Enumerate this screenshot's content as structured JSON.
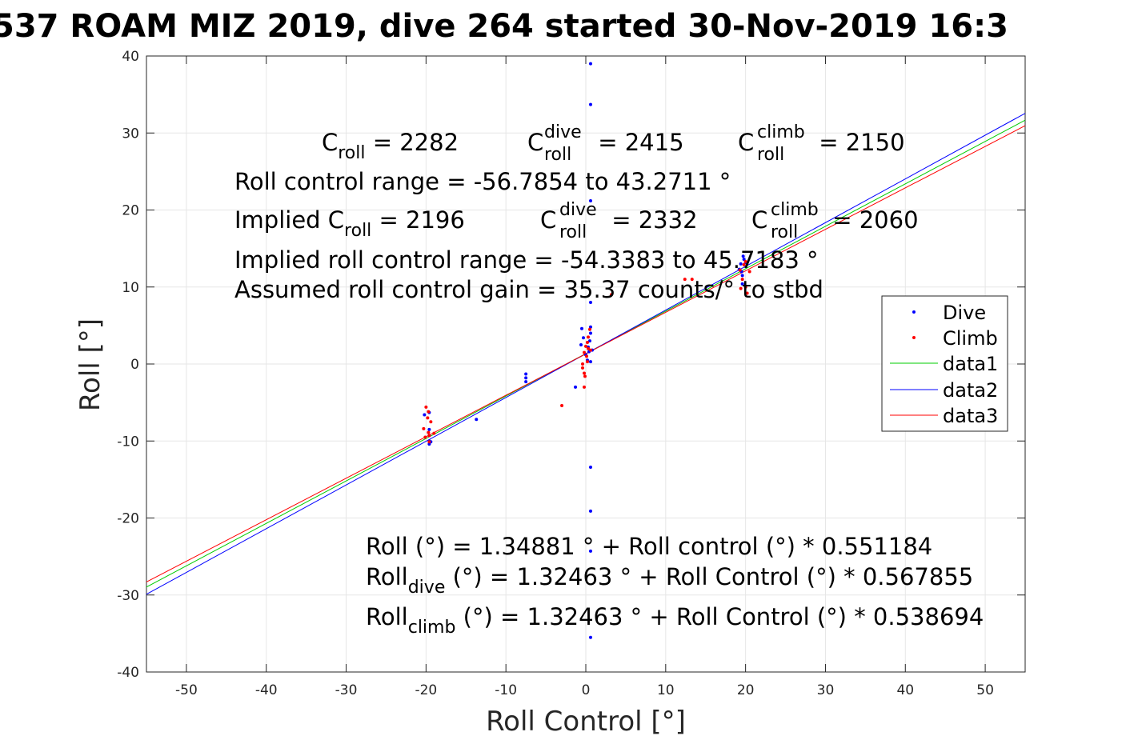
{
  "chart_data": {
    "type": "scatter",
    "title": "537 ROAM MIZ 2019, dive 264 started 30-Nov-2019 16:3",
    "xlabel": "Roll Control [°]",
    "ylabel": "Roll [°]",
    "xlim": [
      -55,
      55
    ],
    "ylim": [
      -40,
      40
    ],
    "xticks": [
      -50,
      -40,
      -30,
      -20,
      -10,
      0,
      10,
      20,
      30,
      40,
      50
    ],
    "yticks": [
      -40,
      -30,
      -20,
      -10,
      0,
      10,
      20,
      30,
      40
    ],
    "grid": true,
    "legend_position": "right",
    "colors": {
      "dive": "#0000ff",
      "climb": "#ff0000",
      "data1": "#00cc00",
      "data2": "#0000ff",
      "data3": "#ff0000"
    },
    "series": [
      {
        "name": "Dive",
        "kind": "scatter",
        "points": [
          [
            0.6,
            39.0
          ],
          [
            0.6,
            33.7
          ],
          [
            0.6,
            21.2
          ],
          [
            0.6,
            8.0
          ],
          [
            0.6,
            4.8
          ],
          [
            0.6,
            4.0
          ],
          [
            0.5,
            3.0
          ],
          [
            0.3,
            2.2
          ],
          [
            0.0,
            1.2
          ],
          [
            0.2,
            0.5
          ],
          [
            0.6,
            0.3
          ],
          [
            -1.3,
            -3.0
          ],
          [
            0.6,
            -13.4
          ],
          [
            0.6,
            -19.1
          ],
          [
            0.6,
            -24.3
          ],
          [
            0.6,
            -35.5
          ],
          [
            -0.5,
            4.6
          ],
          [
            -0.3,
            3.4
          ],
          [
            -0.6,
            2.5
          ],
          [
            0.4,
            1.6
          ],
          [
            0.8,
            1.8
          ],
          [
            -7.5,
            -1.3
          ],
          [
            -7.5,
            -1.8
          ],
          [
            -7.5,
            -2.3
          ],
          [
            -13.7,
            -7.2
          ],
          [
            -20.2,
            -6.6
          ],
          [
            -19.6,
            -6.3
          ],
          [
            -19.6,
            -8.5
          ],
          [
            -19.6,
            -9.3
          ],
          [
            -19.6,
            -10.0
          ],
          [
            -19.4,
            -10.1
          ],
          [
            -19.6,
            -10.4
          ],
          [
            19.2,
            12.3
          ],
          [
            19.4,
            13.0
          ],
          [
            19.5,
            12.0
          ],
          [
            19.6,
            11.5
          ],
          [
            19.7,
            14.0
          ],
          [
            19.6,
            10.4
          ],
          [
            19.8,
            13.6
          ],
          [
            20.0,
            13.2
          ]
        ]
      },
      {
        "name": "Climb",
        "kind": "scatter",
        "points": [
          [
            0.2,
            2.8
          ],
          [
            0.0,
            2.3
          ],
          [
            0.3,
            2.0
          ],
          [
            0.6,
            1.8
          ],
          [
            -0.2,
            1.5
          ],
          [
            0.1,
            1.0
          ],
          [
            0.2,
            0.3
          ],
          [
            -0.4,
            -0.5
          ],
          [
            -0.2,
            -1.2
          ],
          [
            -0.1,
            -1.6
          ],
          [
            -0.2,
            -3.0
          ],
          [
            0.3,
            3.5
          ],
          [
            0.5,
            4.5
          ],
          [
            -0.4,
            0.0
          ],
          [
            -3.0,
            -5.4
          ],
          [
            3.2,
            9.0
          ],
          [
            -20.0,
            -5.6
          ],
          [
            -19.7,
            -6.2
          ],
          [
            -19.8,
            -7.0
          ],
          [
            -19.4,
            -7.5
          ],
          [
            -20.3,
            -8.4
          ],
          [
            -19.7,
            -8.9
          ],
          [
            -19.6,
            -9.3
          ],
          [
            -20.1,
            -9.5
          ],
          [
            -19.0,
            -9.0
          ],
          [
            -19.6,
            -10.1
          ],
          [
            12.4,
            11.0
          ],
          [
            13.3,
            11.0
          ],
          [
            19.3,
            12.2
          ],
          [
            19.6,
            11.0
          ],
          [
            19.8,
            12.9
          ],
          [
            20.0,
            10.0
          ],
          [
            20.2,
            9.2
          ],
          [
            19.4,
            9.8
          ],
          [
            20.5,
            12.0
          ],
          [
            20.0,
            13.3
          ]
        ]
      },
      {
        "name": "data1",
        "kind": "line",
        "slope": 0.551184,
        "intercept": 1.34881
      },
      {
        "name": "data2",
        "kind": "line",
        "slope": 0.567855,
        "intercept": 1.32463
      },
      {
        "name": "data3",
        "kind": "line",
        "slope": 0.538694,
        "intercept": 1.32463
      }
    ],
    "annotations": {
      "c_roll": "C",
      "c_roll_sub": "roll",
      "c_roll_val": " = 2282",
      "c_dive": "C",
      "c_dive_sup": "dive",
      "c_dive_sub": "roll",
      "c_dive_val": " = 2415",
      "c_climb": "C",
      "c_climb_sup": "climb",
      "c_climb_sub": "roll",
      "c_climb_val": " = 2150",
      "range": "Roll control range = -56.7854 to 43.2711 °",
      "implied_prefix": "Implied C",
      "implied_sub": "roll",
      "implied_val": " = 2196",
      "implied_dive": "C",
      "implied_dive_sup": "dive",
      "implied_dive_sub": "roll",
      "implied_dive_val": " = 2332",
      "implied_climb": "C",
      "implied_climb_sup": "climb",
      "implied_climb_sub": "roll",
      "implied_climb_val": " = 2060",
      "implied_range": "Implied roll control range = -54.3383 to 45.7183 °",
      "gain": "Assumed roll control gain = 35.37 counts/° to stbd",
      "fit_all": "Roll (°) = 1.34881 ° + Roll control (°) * 0.551184",
      "fit_dive_a": "Roll",
      "fit_dive_sub": "dive",
      "fit_dive_b": " (°) = 1.32463 ° + Roll Control (°) * 0.567855",
      "fit_climb_a": "Roll",
      "fit_climb_sub": "climb",
      "fit_climb_b": " (°) = 1.32463 ° + Roll Control (°) * 0.538694"
    }
  }
}
